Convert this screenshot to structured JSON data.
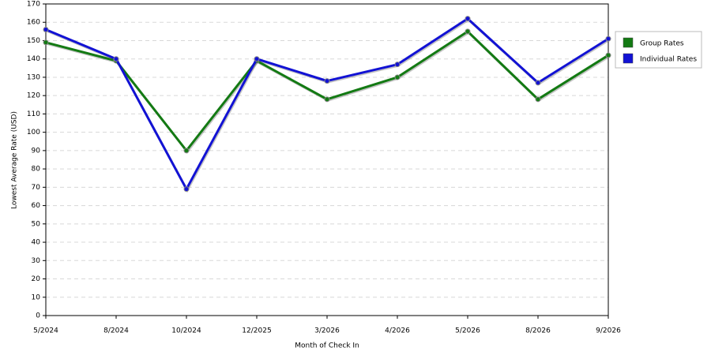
{
  "chart_data": {
    "type": "line",
    "x_label": "Month of Check In",
    "y_label": "Lowest Average Rate (USD)",
    "categories": [
      "5/2024",
      "8/2024",
      "10/2024",
      "12/2025",
      "3/2026",
      "4/2026",
      "5/2026",
      "8/2026",
      "9/2026"
    ],
    "series": [
      {
        "name": "Group Rates",
        "color": "#137a13",
        "values": [
          149,
          139,
          90,
          139,
          118,
          130,
          155,
          118,
          142
        ]
      },
      {
        "name": "Individual Rates",
        "color": "#1212d4",
        "values": [
          156,
          140,
          69,
          140,
          128,
          137,
          162,
          127,
          151
        ]
      }
    ],
    "ylim": [
      0,
      170
    ],
    "yticks": [
      0,
      10,
      20,
      30,
      40,
      50,
      60,
      70,
      80,
      90,
      100,
      110,
      120,
      130,
      140,
      150,
      160,
      170
    ],
    "grid": true,
    "legend": "right"
  }
}
